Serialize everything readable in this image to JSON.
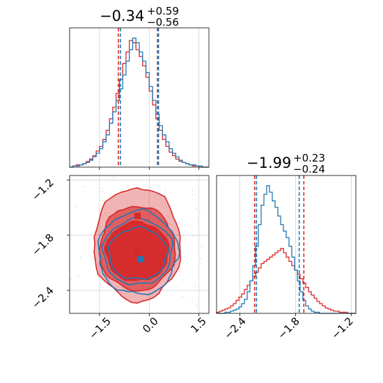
{
  "chart_data": {
    "type": "corner",
    "colors": {
      "blue": "#1f77b4",
      "red": "#d62728"
    },
    "panels": [
      {
        "id": "hist_x",
        "type": "histogram",
        "title": {
          "value": "−0.34",
          "upper": "+0.59",
          "lower": "−0.56"
        },
        "xlim": [
          -2.4,
          1.8
        ],
        "quantiles": {
          "blue": [
            -0.87,
            0.28
          ],
          "red": [
            -0.93,
            0.25
          ]
        },
        "bins": [
          -2.4,
          -2.3,
          -2.2,
          -2.1,
          -2.0,
          -1.9,
          -1.8,
          -1.7,
          -1.6,
          -1.5,
          -1.4,
          -1.3,
          -1.2,
          -1.1,
          -1.0,
          -0.9,
          -0.8,
          -0.7,
          -0.6,
          -0.5,
          -0.4,
          -0.3,
          -0.2,
          -0.1,
          0.0,
          0.1,
          0.2,
          0.3,
          0.4,
          0.5,
          0.6,
          0.7,
          0.8,
          0.9,
          1.0,
          1.1,
          1.2,
          1.3,
          1.4,
          1.5,
          1.6,
          1.7,
          1.8
        ],
        "series": [
          {
            "color": "blue",
            "counts": [
              0,
              1,
              1,
              2,
              3,
              4,
              6,
              9,
              12,
              16,
              22,
              28,
              38,
              48,
              58,
              68,
              80,
              92,
              102,
              112,
              108,
              100,
              92,
              82,
              70,
              58,
              46,
              36,
              28,
              22,
              16,
              12,
              9,
              6,
              4,
              3,
              2,
              2,
              1,
              1,
              0,
              0
            ]
          },
          {
            "color": "red",
            "counts": [
              0,
              1,
              2,
              2,
              3,
              5,
              7,
              10,
              14,
              18,
              24,
              32,
              42,
              52,
              64,
              76,
              90,
              100,
              110,
              108,
              102,
              96,
              88,
              78,
              66,
              54,
              42,
              32,
              24,
              18,
              13,
              10,
              7,
              5,
              4,
              3,
              2,
              1,
              1,
              0,
              0,
              0
            ]
          }
        ]
      },
      {
        "id": "contour",
        "type": "contour",
        "xlim": [
          -2.4,
          1.8
        ],
        "ylim": [
          -2.65,
          -1.15
        ],
        "xticks": [
          "−1.5",
          "0.0",
          "1.5"
        ],
        "yticks": [
          "−1.2",
          "−1.8",
          "−2.4"
        ],
        "markers": [
          {
            "color": "red",
            "x": -0.35,
            "y": -1.59
          },
          {
            "color": "red",
            "x": -0.35,
            "y": -1.99
          },
          {
            "color": "blue",
            "x": -0.25,
            "y": -2.06
          }
        ],
        "contours": [
          {
            "color": "red",
            "level": 0.39,
            "cx": -0.36,
            "cy": -1.98,
            "rx": 0.95,
            "ry": 0.32
          },
          {
            "color": "red",
            "level": 0.86,
            "cx": -0.36,
            "cy": -1.94,
            "rx": 1.14,
            "ry": 0.46
          },
          {
            "color": "red",
            "level": 0.99,
            "cx": -0.36,
            "cy": -1.9,
            "rx": 1.3,
            "ry": 0.62
          },
          {
            "color": "blue",
            "level": 0.39,
            "cx": -0.34,
            "cy": -2.0,
            "rx": 0.88,
            "ry": 0.28
          },
          {
            "color": "blue",
            "level": 0.86,
            "cx": -0.34,
            "cy": -1.98,
            "rx": 1.04,
            "ry": 0.36
          },
          {
            "color": "blue",
            "level": 0.99,
            "cx": -0.34,
            "cy": -1.99,
            "rx": 1.2,
            "ry": 0.45
          }
        ]
      },
      {
        "id": "hist_y",
        "type": "histogram",
        "title": {
          "value": "−1.99",
          "upper": "+0.23",
          "lower": "−0.24"
        },
        "xlim": [
          -2.65,
          -1.15
        ],
        "xticks": [
          "−2.4",
          "−1.8",
          "−1.2"
        ],
        "quantiles": {
          "blue": [
            -2.22,
            -1.76
          ],
          "red": [
            -2.24,
            -1.71
          ]
        },
        "bins": [
          -2.65,
          -2.62,
          -2.59,
          -2.56,
          -2.53,
          -2.5,
          -2.47,
          -2.44,
          -2.41,
          -2.38,
          -2.35,
          -2.32,
          -2.29,
          -2.26,
          -2.23,
          -2.2,
          -2.17,
          -2.14,
          -2.11,
          -2.08,
          -2.05,
          -2.02,
          -1.99,
          -1.96,
          -1.93,
          -1.9,
          -1.87,
          -1.84,
          -1.81,
          -1.78,
          -1.75,
          -1.72,
          -1.69,
          -1.66,
          -1.63,
          -1.6,
          -1.57,
          -1.54,
          -1.51,
          -1.48,
          -1.45,
          -1.42,
          -1.39,
          -1.36,
          -1.33,
          -1.3,
          -1.27,
          -1.24,
          -1.21,
          -1.18,
          -1.15
        ],
        "series": [
          {
            "color": "blue",
            "counts": [
              0,
              0,
              0,
              1,
              1,
              2,
              3,
              4,
              6,
              9,
              13,
              20,
              30,
              44,
              62,
              82,
              100,
              110,
              118,
              112,
              104,
              98,
              90,
              82,
              76,
              70,
              62,
              52,
              40,
              30,
              20,
              12,
              7,
              4,
              2,
              1,
              1,
              0,
              0,
              0,
              0,
              0,
              0,
              0,
              0,
              0,
              0,
              0,
              0,
              0
            ]
          },
          {
            "color": "red",
            "counts": [
              1,
              2,
              3,
              4,
              5,
              7,
              9,
              12,
              15,
              18,
              22,
              26,
              30,
              34,
              38,
              42,
              46,
              48,
              50,
              52,
              54,
              56,
              58,
              60,
              56,
              52,
              48,
              44,
              40,
              36,
              32,
              28,
              24,
              20,
              17,
              14,
              11,
              9,
              7,
              5,
              4,
              3,
              2,
              2,
              1,
              1,
              1,
              0,
              0,
              0
            ]
          }
        ]
      }
    ]
  }
}
